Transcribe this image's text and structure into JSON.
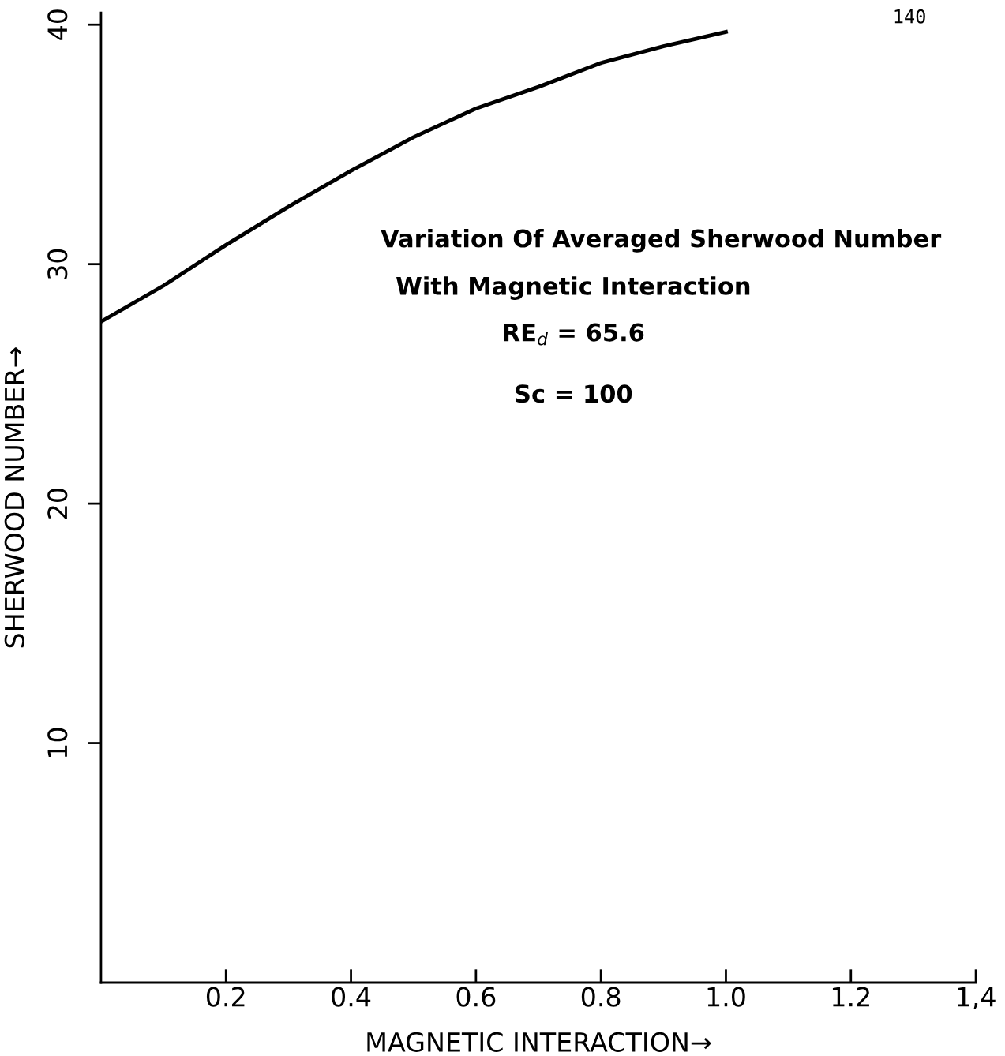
{
  "chart_data": {
    "type": "line",
    "xlabel": "MAGNETIC INTERACTION→",
    "ylabel": "SHERWOOD NUMBER→",
    "x": [
      0,
      0.1,
      0.2,
      0.3,
      0.4,
      0.5,
      0.6,
      0.7,
      0.8,
      0.9,
      1.0
    ],
    "series": [
      {
        "color": "#000000",
        "values": [
          27.6,
          29.1,
          30.8,
          32.4,
          33.9,
          35.3,
          36.5,
          37.4,
          38.4,
          39.1,
          39.7
        ]
      }
    ],
    "xlim": [
      0,
      1.4
    ],
    "xticks": [
      {
        "value": 0.2,
        "label": "0.2"
      },
      {
        "value": 0.4,
        "label": "0.4"
      },
      {
        "value": 0.6,
        "label": "0.6"
      },
      {
        "value": 0.8,
        "label": "0.8"
      },
      {
        "value": 1.0,
        "label": "1.0"
      },
      {
        "value": 1.2,
        "label": "1.2"
      },
      {
        "value": 1.4,
        "label": "1,4"
      }
    ],
    "ylim": [
      0,
      40.5
    ],
    "yticks": [
      10,
      20,
      30,
      40
    ],
    "grid": false,
    "marker": "none",
    "line_style": "solid",
    "annotations": [
      "Variation Of Averaged Sherwood Number",
      "With Magnetic Interaction",
      "RE$_{d}$ = 65.6",
      "Sc = 100",
      "140"
    ]
  }
}
